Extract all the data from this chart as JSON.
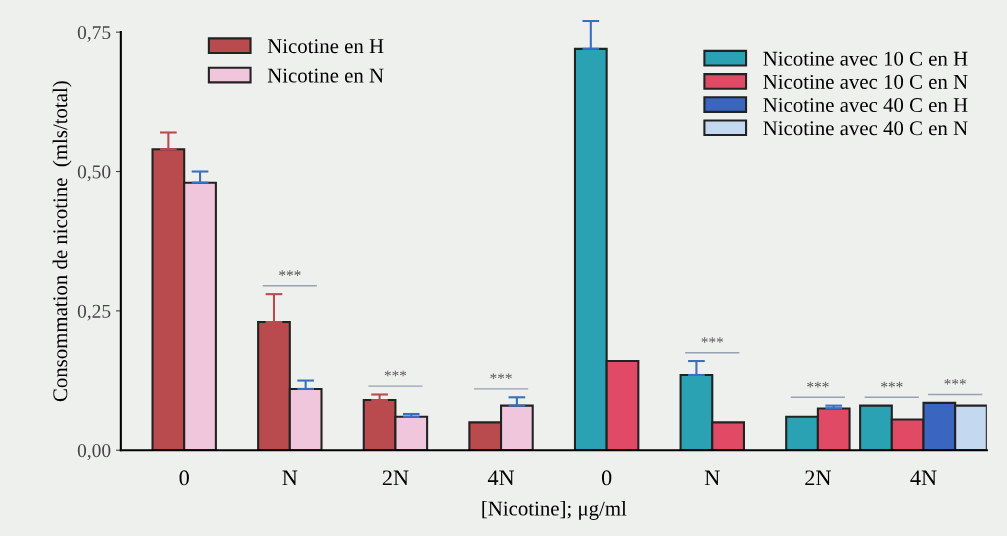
{
  "chart_data": {
    "type": "bar",
    "xlabel": "[Nicotine]; μg/ml",
    "ylabel": "Consommation de nicotine  (mls/total)",
    "categories": [
      "0",
      "N",
      "2N",
      "4N",
      "0",
      "N",
      "2N",
      "4N"
    ],
    "ylim": [
      0,
      0.75
    ],
    "yticks": [
      {
        "value": 0,
        "label": "0,00"
      },
      {
        "value": 0.25,
        "label": "0,25"
      },
      {
        "value": 0.5,
        "label": "0,50"
      },
      {
        "value": 0.75,
        "label": "0,75"
      }
    ],
    "series": [
      {
        "name": "Nicotine en H",
        "color": "#b94a4e",
        "values": [
          0.54,
          0.23,
          0.09,
          0.05,
          null,
          null,
          null,
          null
        ],
        "errors": [
          [
            0.54,
            0.57
          ],
          [
            0.23,
            0.28
          ],
          [
            0.09,
            0.1
          ],
          null,
          null,
          null,
          null,
          null
        ]
      },
      {
        "name": "Nicotine en N",
        "color": "#f0c6dc",
        "values": [
          0.48,
          0.11,
          0.06,
          0.08,
          null,
          null,
          null,
          null
        ],
        "errors": [
          [
            0.48,
            0.5
          ],
          [
            0.11,
            0.125
          ],
          [
            0.06,
            0.065
          ],
          [
            0.08,
            0.095
          ],
          null,
          null,
          null,
          null
        ]
      },
      {
        "name": "Nicotine avec 10 C en H",
        "color": "#2aa2b4",
        "values": [
          null,
          null,
          null,
          null,
          0.72,
          0.135,
          0.06,
          0.08
        ],
        "errors": [
          null,
          null,
          null,
          null,
          [
            0.72,
            0.77
          ],
          [
            0.135,
            0.16
          ],
          null,
          null
        ]
      },
      {
        "name": "Nicotine avec 10 C en N",
        "color": "#e04a64",
        "values": [
          null,
          null,
          null,
          null,
          0.16,
          0.05,
          0.075,
          0.055
        ],
        "errors": [
          null,
          null,
          null,
          null,
          null,
          null,
          [
            0.075,
            0.08
          ],
          null
        ]
      },
      {
        "name": "Nicotine avec 40 C en H",
        "color": "#3a66c0",
        "values": [
          null,
          null,
          null,
          null,
          null,
          null,
          null,
          0.085
        ]
      },
      {
        "name": "Nicotine avec 40 C en N",
        "color": "#c4d8f0",
        "values": [
          null,
          null,
          null,
          null,
          null,
          null,
          null,
          0.08
        ]
      }
    ],
    "annotations": [
      "***",
      "***",
      "***",
      "***",
      "***",
      "***",
      "***"
    ],
    "legend": "top",
    "grid": false
  }
}
